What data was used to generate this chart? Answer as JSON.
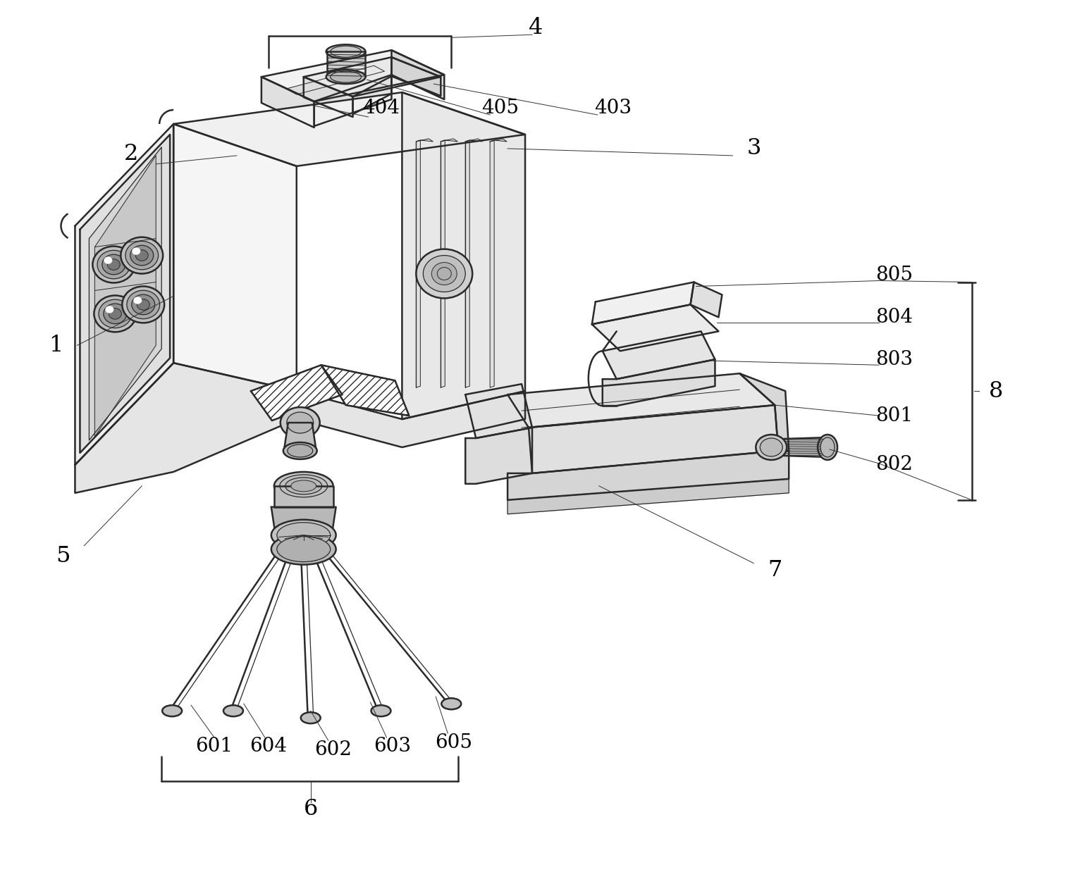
{
  "bg_color": "#ffffff",
  "line_color": "#2a2a2a",
  "label_color": "#000000",
  "lw_main": 1.8,
  "lw_thin": 0.9,
  "lw_inner": 0.7,
  "fig_width": 15.28,
  "fig_height": 12.55,
  "dpi": 100
}
